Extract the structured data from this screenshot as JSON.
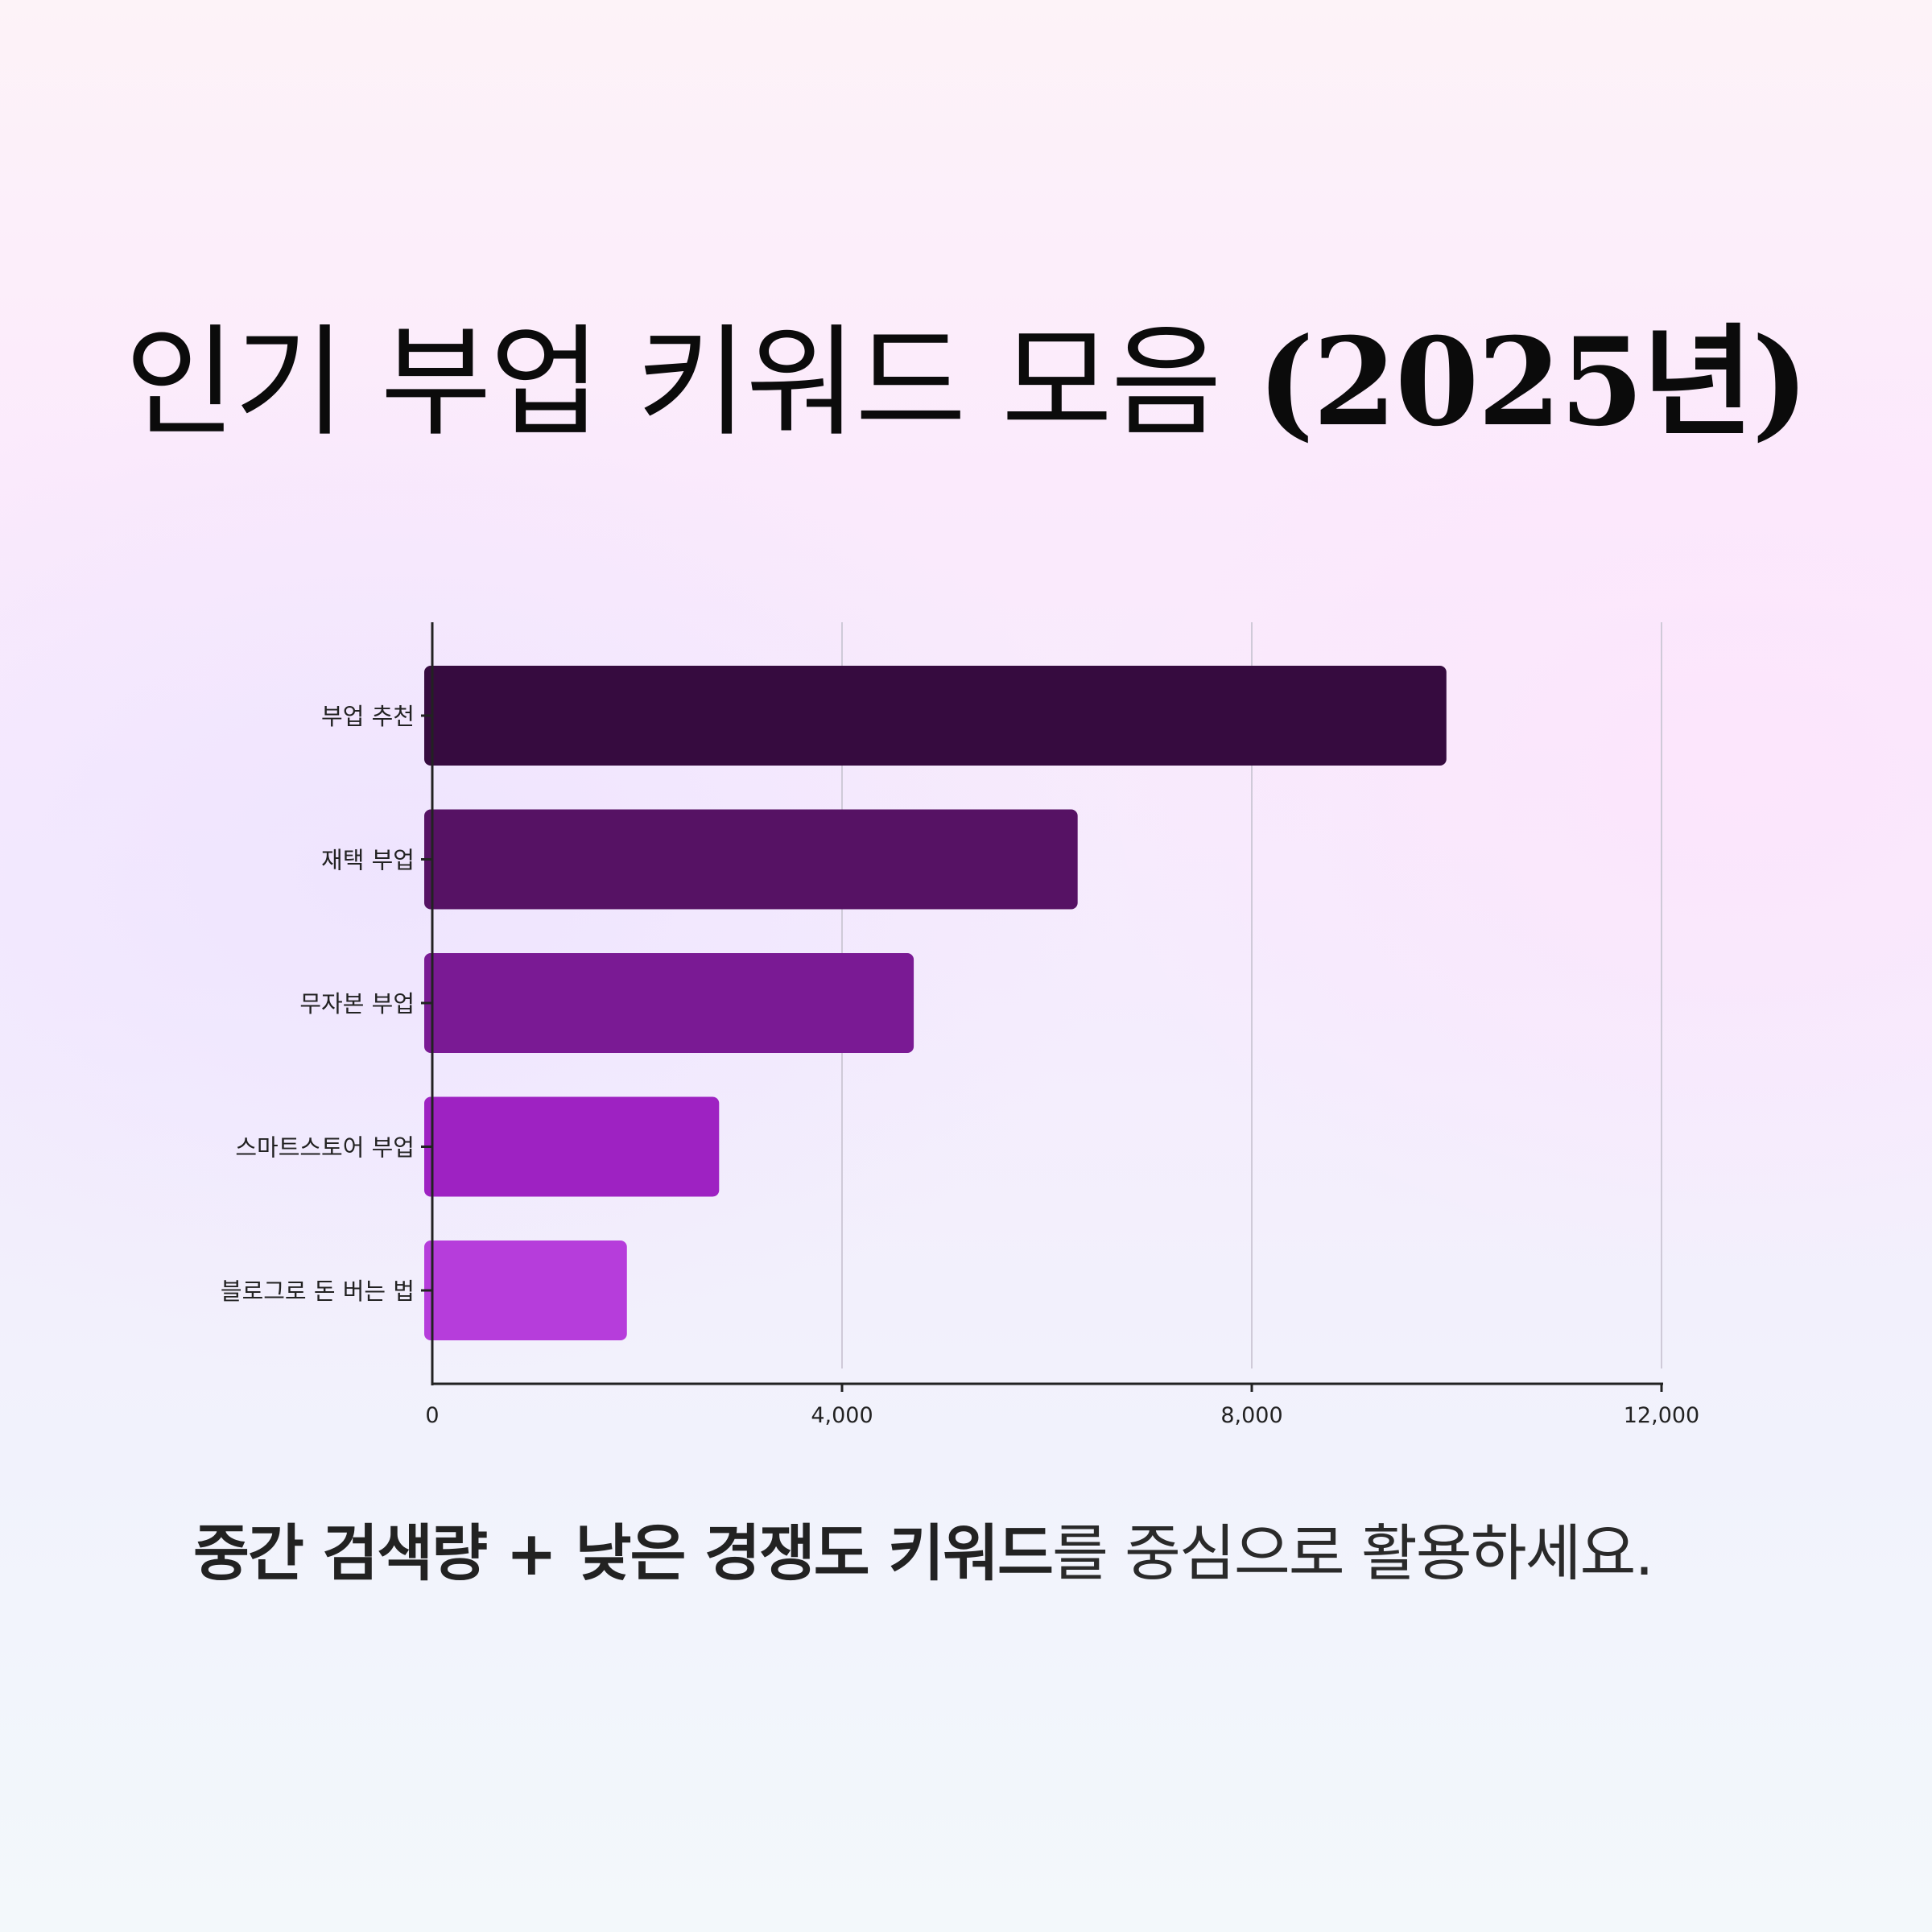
{
  "title": {
    "main": "인기 부업 키워드 모음 ",
    "year": "(2025년)"
  },
  "caption": {
    "bold": "중간 검색량 + 낮은 경쟁도 키워드",
    "normal": "를 중심으로 활용하세요."
  },
  "chart_data": {
    "type": "bar",
    "orientation": "horizontal",
    "title": "인기 부업 키워드 모음 (2025년)",
    "categories": [
      "부업 추천",
      "재택 부업",
      "무자본 부업",
      "스마트스토어 부업",
      "블로그로 돈 버는 법"
    ],
    "values": [
      9900,
      6300,
      4700,
      2800,
      1900
    ],
    "colors": [
      "#360b3f",
      "#561264",
      "#7a1a94",
      "#9e22c2",
      "#b63ddb"
    ],
    "xlim": [
      0,
      12000
    ],
    "x_ticks": [
      0,
      4000,
      8000,
      12000
    ],
    "x_tick_labels": [
      "0",
      "4,000",
      "8,000",
      "12,000"
    ],
    "xlabel": "",
    "ylabel": "",
    "grid": "vertical",
    "legend": "none"
  }
}
